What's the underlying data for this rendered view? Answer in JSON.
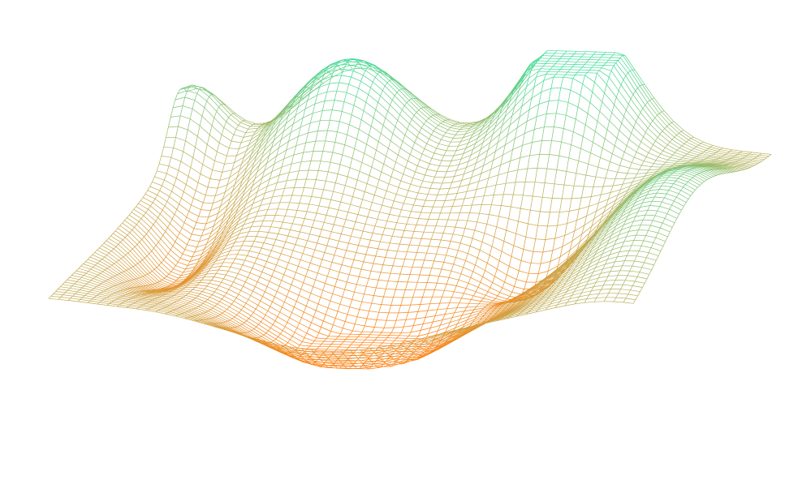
{
  "chart_data": {
    "type": "surface",
    "title": "",
    "xlabel": "",
    "ylabel": "",
    "zlabel": "",
    "axes_visible": false,
    "grid": false,
    "legend": "none",
    "wireframe": true,
    "colorscale": [
      {
        "level": 0.0,
        "color": "#ff7f0e"
      },
      {
        "level": 0.5,
        "color": "#b9b15c"
      },
      {
        "level": 1.0,
        "color": "#3ddc97"
      }
    ],
    "surface": {
      "x_range": [
        0,
        1
      ],
      "y_range": [
        0,
        1
      ],
      "z_range": [
        0,
        1
      ],
      "grid_resolution": 120,
      "description_points": [
        {
          "x": 0.0,
          "y": 1.0,
          "z": 0.7
        },
        {
          "x": 0.0,
          "y": 0.0,
          "z": 0.2
        },
        {
          "x": 0.35,
          "y": 0.85,
          "z": 0.95
        },
        {
          "x": 0.45,
          "y": 0.3,
          "z": 0.05
        },
        {
          "x": 0.7,
          "y": 0.9,
          "z": 1.0
        },
        {
          "x": 0.75,
          "y": 0.55,
          "z": 0.1
        },
        {
          "x": 1.0,
          "y": 0.5,
          "z": 0.75
        },
        {
          "x": 1.0,
          "y": 0.2,
          "z": 0.55
        }
      ]
    }
  },
  "colors": {
    "background": "#ffffff",
    "low": "#ff7f0e",
    "high": "#3ddc97"
  }
}
